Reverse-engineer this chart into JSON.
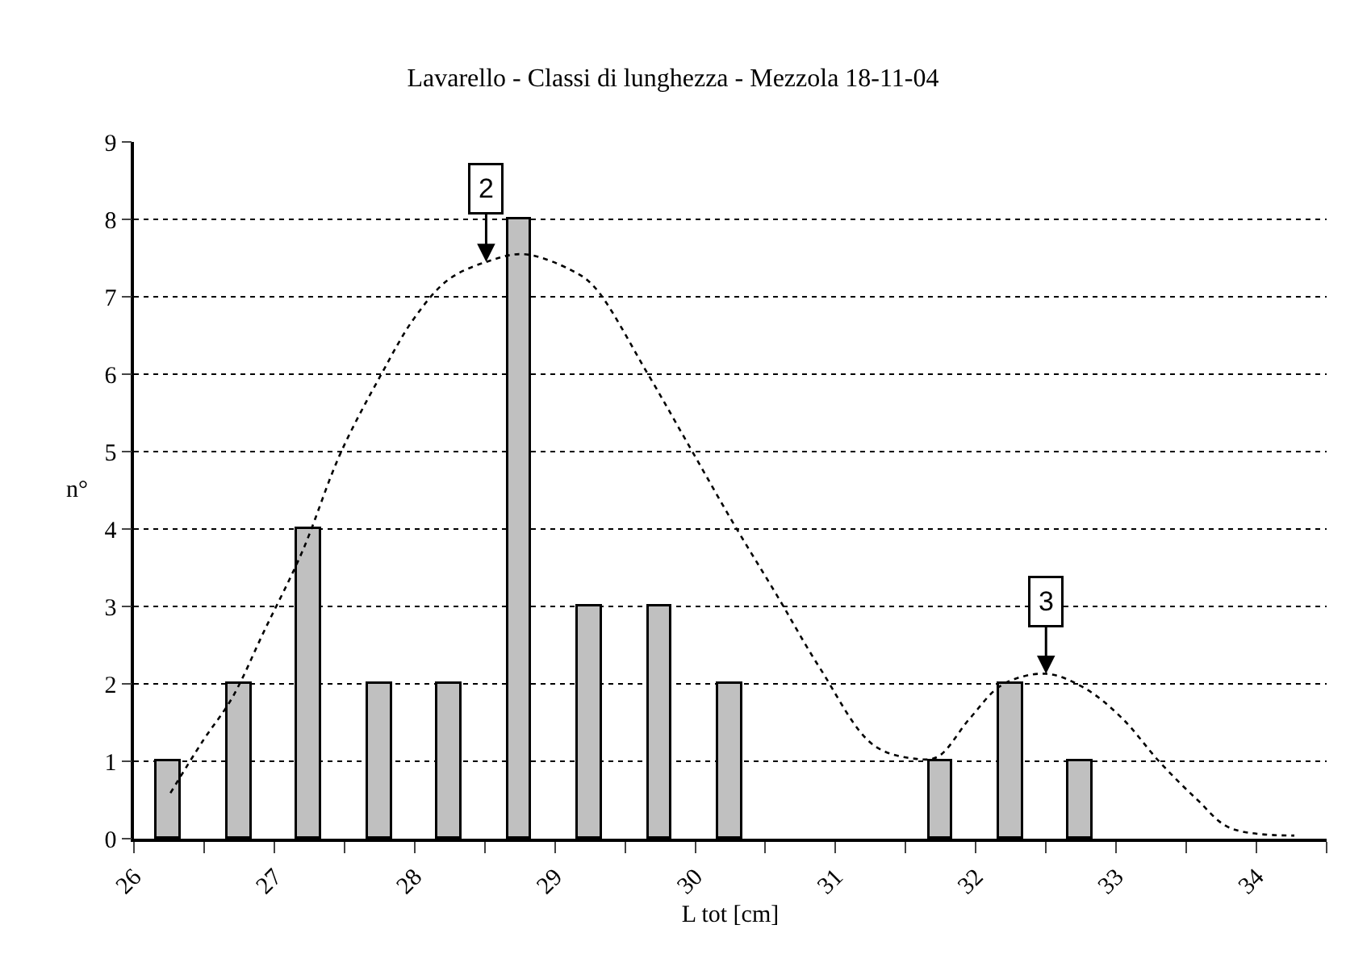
{
  "chart_data": {
    "type": "bar",
    "title": "Lavarello - Classi di lunghezza - Mezzola 18-11-04",
    "xlabel": "L tot [cm]",
    "ylabel": "n°",
    "x": [
      26.25,
      26.75,
      27.25,
      27.75,
      28.25,
      28.75,
      29.25,
      29.75,
      30.25,
      31.75,
      32.25,
      32.75
    ],
    "series": [
      {
        "color": "#c0c0c0",
        "values": [
          1,
          2,
          4,
          2,
          2,
          8,
          3,
          3,
          2,
          1,
          2,
          1
        ]
      },
      {
        "type": "line",
        "color": "#000000",
        "line_style": "dotted",
        "marker": "none",
        "x": [
          26.26,
          26.49,
          26.7,
          26.93,
          27.2,
          27.47,
          27.76,
          28.0,
          28.24,
          28.51,
          28.78,
          29.12,
          29.28,
          29.66,
          29.97,
          30.27,
          30.58,
          30.89,
          31.27,
          31.58,
          31.73,
          31.96,
          32.19,
          32.5,
          32.77,
          33.04,
          33.31,
          33.58,
          33.81,
          34.27
        ],
        "values": [
          0.59,
          1.26,
          1.82,
          2.69,
          3.71,
          4.97,
          5.99,
          6.73,
          7.22,
          7.45,
          7.55,
          7.34,
          7.13,
          6.01,
          5.03,
          4.08,
          3.15,
          2.2,
          1.21,
          1.03,
          1.06,
          1.56,
          1.99,
          2.13,
          1.95,
          1.56,
          0.99,
          0.5,
          0.14,
          0.04
        ]
      }
    ],
    "annotations": [
      {
        "text": "2",
        "x": 28.51,
        "y": 7.45
      },
      {
        "text": "3",
        "x": 32.5,
        "y": 2.13
      }
    ],
    "xlim": [
      26,
      34.5
    ],
    "xticks": [
      26,
      {
        "value": 26.5,
        "label": null
      },
      27,
      {
        "value": 27.5,
        "label": null
      },
      28,
      {
        "value": 28.5,
        "label": null
      },
      29,
      {
        "value": 29.5,
        "label": null
      },
      30,
      {
        "value": 30.5,
        "label": null
      },
      31,
      {
        "value": 31.5,
        "label": null
      },
      32,
      {
        "value": 32.5,
        "label": null
      },
      33,
      {
        "value": 33.5,
        "label": null
      },
      34,
      {
        "value": 34.5,
        "label": null
      }
    ],
    "ylim": [
      0,
      9
    ],
    "yticks": [
      0,
      1,
      2,
      3,
      4,
      5,
      6,
      7,
      8,
      9
    ],
    "grid": "y"
  }
}
